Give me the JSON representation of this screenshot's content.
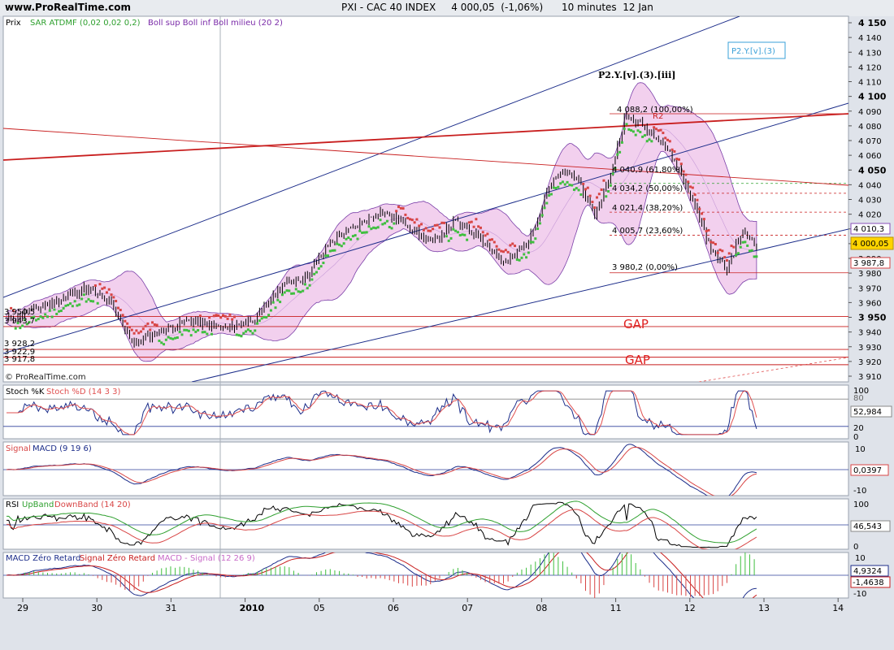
{
  "header": {
    "site": "www.ProRealTime.com",
    "title": "PXI - CAC 40 INDEX     4 000,05  (-1,06%)      10 minutes  12 Jan"
  },
  "main_panel": {
    "legend_prix": "Prix",
    "legend_sar": "SAR ATDMF (0,02 0,02 0,2)",
    "legend_boll": "Boll sup Boll inf Boll milieu (20 2)",
    "watermark": "© ProRealTime.com",
    "wave_label": "P2.Y.[v].(3).[iii]",
    "box_label": "P2.Y.[v].(3)",
    "r2_label": "R2",
    "gap_labels": [
      "GAP",
      "GAP"
    ],
    "fib_labels": [
      "4 088,2 (100,00%)",
      "4 040,9 (61,80%)",
      "4 034,2 (50,00%)",
      "4 021,4 (38,20%)",
      "4 005,7 (23,60%)",
      "3 980,2 (0,00%)"
    ],
    "left_levels": [
      "3 950,5",
      "3 943,7",
      "3 928,2",
      "3 922,9",
      "3 917,8"
    ],
    "y_ticks": [
      "4 150",
      "4 140",
      "4 130",
      "4 120",
      "4 110",
      "4 100",
      "4 090",
      "4 080",
      "4 070",
      "4 060",
      "4 050",
      "4 040",
      "4 030",
      "4 020",
      "4 010",
      "4 000",
      "3 990",
      "3 980",
      "3 970",
      "3 960",
      "3 950",
      "3 940",
      "3 930",
      "3 920",
      "3 910"
    ],
    "right_boxes": {
      "upper_boll": "4 010,3",
      "last": "4 000,05",
      "lower_boll": "3 987,8"
    }
  },
  "stoch_panel": {
    "title_k": "Stoch %K",
    "title_d": "Stoch %D (14 3 3)",
    "ticks": [
      "100",
      "80",
      "20",
      "0"
    ],
    "value": "52,984"
  },
  "macd_panel": {
    "title_signal": "Signal",
    "title_macd": "MACD (9 19 6)",
    "ticks": [
      "10",
      "-10"
    ],
    "value": "0,0397"
  },
  "rsi_panel": {
    "title_rsi": "RSI",
    "title_up": "UpBand",
    "title_down": "DownBand (14 20)",
    "ticks": [
      "100",
      "0"
    ],
    "value": "46,543"
  },
  "macdz_panel": {
    "title_a": "MACD Zéro Retard",
    "title_b": "Signal Zéro Retard",
    "title_c": "MACD - Signal (12 26 9)",
    "ticks": [
      "10",
      "-10"
    ],
    "value1": "4,9324",
    "value2": "-1,4638"
  },
  "x_axis": [
    "29",
    "30",
    "31",
    "2010",
    "05",
    "06",
    "07",
    "08",
    "11",
    "12",
    "13",
    "14"
  ],
  "colors": {
    "panel_bg": "#ffffff",
    "band_fill": "#f2d0ee",
    "band_line": "#7a3fa8",
    "sar_up": "#3fbf3f",
    "sar_down": "#d84545",
    "channel": "#1c2d8a",
    "red_line": "#c81e1e",
    "gap_text": "#e02020",
    "box_label": "#3aa0d8"
  },
  "chart_data": {
    "type": "candlestick",
    "instrument": "PXI - CAC 40 INDEX",
    "interval": "10 minutes",
    "ylim": [
      3905,
      4155
    ],
    "x_labels": [
      "29",
      "30",
      "31",
      "2010",
      "05",
      "06",
      "07",
      "08",
      "11",
      "12",
      "13",
      "14"
    ],
    "close_path_points": [
      {
        "x": "29",
        "y": 3948
      },
      {
        "x": "29",
        "y": 3962
      },
      {
        "x": "29",
        "y": 3970
      },
      {
        "x": "30",
        "y": 3960
      },
      {
        "x": "30",
        "y": 3932
      },
      {
        "x": "30",
        "y": 3940
      },
      {
        "x": "31",
        "y": 3948
      },
      {
        "x": "31",
        "y": 3942
      },
      {
        "x": "2010",
        "y": 3950
      },
      {
        "x": "2010",
        "y": 3972
      },
      {
        "x": "2010",
        "y": 3978
      },
      {
        "x": "05",
        "y": 4002
      },
      {
        "x": "05",
        "y": 4012
      },
      {
        "x": "05",
        "y": 4022
      },
      {
        "x": "06",
        "y": 4014
      },
      {
        "x": "06",
        "y": 4000
      },
      {
        "x": "06",
        "y": 4015
      },
      {
        "x": "07",
        "y": 4005
      },
      {
        "x": "07",
        "y": 3986
      },
      {
        "x": "07",
        "y": 4002
      },
      {
        "x": "08",
        "y": 4040
      },
      {
        "x": "08",
        "y": 4048
      },
      {
        "x": "08",
        "y": 4044
      },
      {
        "x": "08",
        "y": 4018
      },
      {
        "x": "08",
        "y": 4042
      },
      {
        "x": "11",
        "y": 4086
      },
      {
        "x": "11",
        "y": 4080
      },
      {
        "x": "11",
        "y": 4070
      },
      {
        "x": "11",
        "y": 4048
      },
      {
        "x": "12",
        "y": 4022
      },
      {
        "x": "12",
        "y": 3994
      },
      {
        "x": "12",
        "y": 3982
      },
      {
        "x": "12",
        "y": 4008
      },
      {
        "x": "12",
        "y": 4000
      }
    ],
    "fibonacci": [
      {
        "label": "4 088,2 (100,00%)",
        "value": 4088.2
      },
      {
        "label": "4 040,9 (61,80%)",
        "value": 4040.9
      },
      {
        "label": "4 034,2 (50,00%)",
        "value": 4034.2
      },
      {
        "label": "4 021,4 (38,20%)",
        "value": 4021.4
      },
      {
        "label": "4 005,7 (23,60%)",
        "value": 4005.7
      },
      {
        "label": "3 980,2 (0,00%)",
        "value": 3980.2
      }
    ],
    "gap_levels": [
      3950.5,
      3943.7,
      3928.2,
      3922.9,
      3917.8
    ],
    "last": 4000.05,
    "upper_boll": 4010.3,
    "lower_boll": 3987.8,
    "stoch_last": 52.984,
    "macd_last": 0.0397,
    "rsi_last": 46.543,
    "macd_zero_last": 4.9324,
    "macd_zero_hist_last": -1.4638
  }
}
